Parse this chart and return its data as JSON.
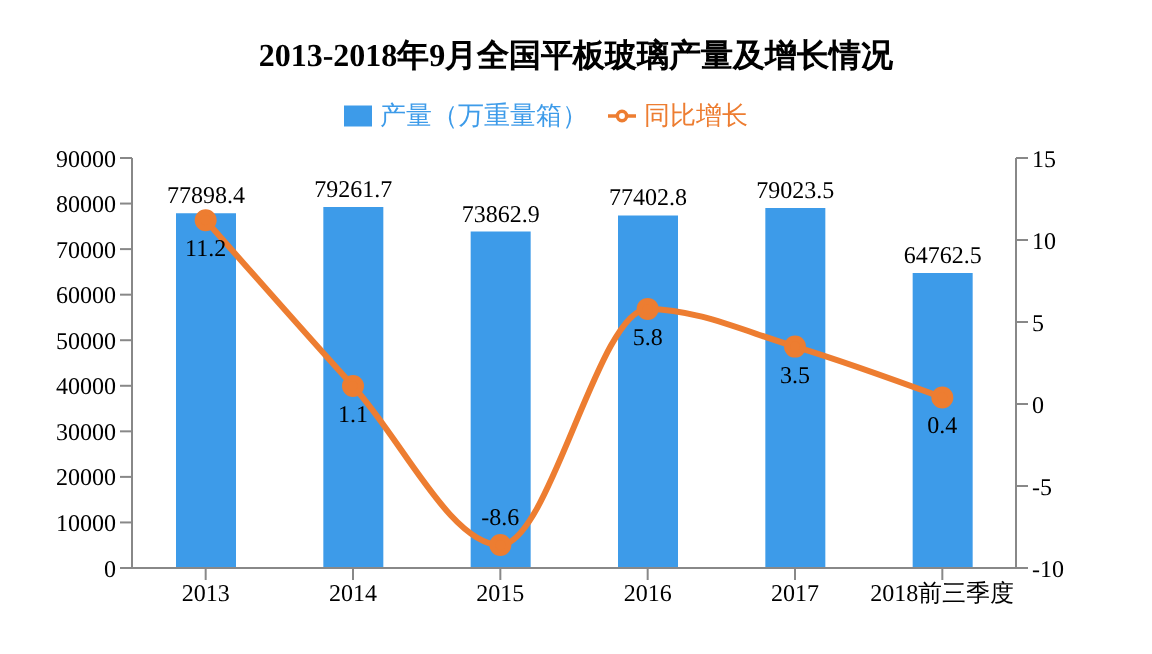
{
  "chart_data": {
    "type": "bar",
    "title": "2013-2018年9月全国平板玻璃产量及增长情况",
    "categories": [
      "2013",
      "2014",
      "2015",
      "2016",
      "2017",
      "2018前三季度"
    ],
    "series": [
      {
        "name": "产量（万重量箱）",
        "color": "#3d9be9",
        "values": [
          77898.4,
          79261.7,
          73862.9,
          77402.8,
          79023.5,
          64762.5
        ]
      },
      {
        "name": "同比增长",
        "type": "line",
        "axis": "y2",
        "color": "#ed7d31",
        "values": [
          11.2,
          1.1,
          -8.6,
          5.8,
          3.5,
          0.4
        ]
      }
    ],
    "ylim": [
      0,
      90000
    ],
    "yticks": [
      0,
      10000,
      20000,
      30000,
      40000,
      50000,
      60000,
      70000,
      80000,
      90000
    ],
    "y2lim": [
      -10,
      15
    ],
    "y2ticks": [
      -10,
      -5,
      0,
      5,
      10,
      15
    ],
    "data_labels": true,
    "legend": "top",
    "marker": "circle",
    "grid": false
  }
}
